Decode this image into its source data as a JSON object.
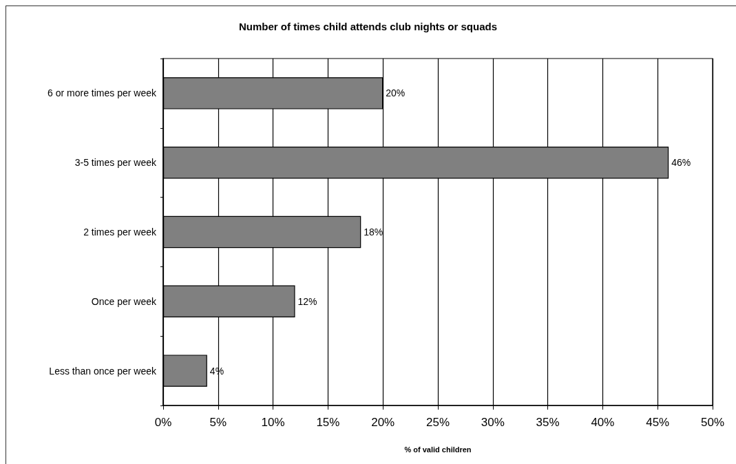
{
  "chart_data": {
    "type": "bar",
    "orientation": "horizontal",
    "title": "Number of times child attends club nights or squads",
    "categories": [
      "6 or more times per week",
      "3-5 times per week",
      "2 times per week",
      "Once per week",
      "Less than once per week"
    ],
    "values": [
      20,
      46,
      18,
      12,
      4
    ],
    "value_labels": [
      "20%",
      "46%",
      "18%",
      "12%",
      "4%"
    ],
    "color": "#808080",
    "xlabel": "% of valid children",
    "xlim": [
      0,
      50
    ],
    "xticks": [
      {
        "value": 0,
        "label": "0%"
      },
      {
        "value": 5,
        "label": "5%"
      },
      {
        "value": 10,
        "label": "10%"
      },
      {
        "value": 15,
        "label": "15%"
      },
      {
        "value": 20,
        "label": "20%"
      },
      {
        "value": 25,
        "label": "25%"
      },
      {
        "value": 30,
        "label": "30%"
      },
      {
        "value": 35,
        "label": "35%"
      },
      {
        "value": 40,
        "label": "40%"
      },
      {
        "value": 45,
        "label": "45%"
      },
      {
        "value": 50,
        "label": "50%"
      }
    ],
    "grid": "x"
  }
}
